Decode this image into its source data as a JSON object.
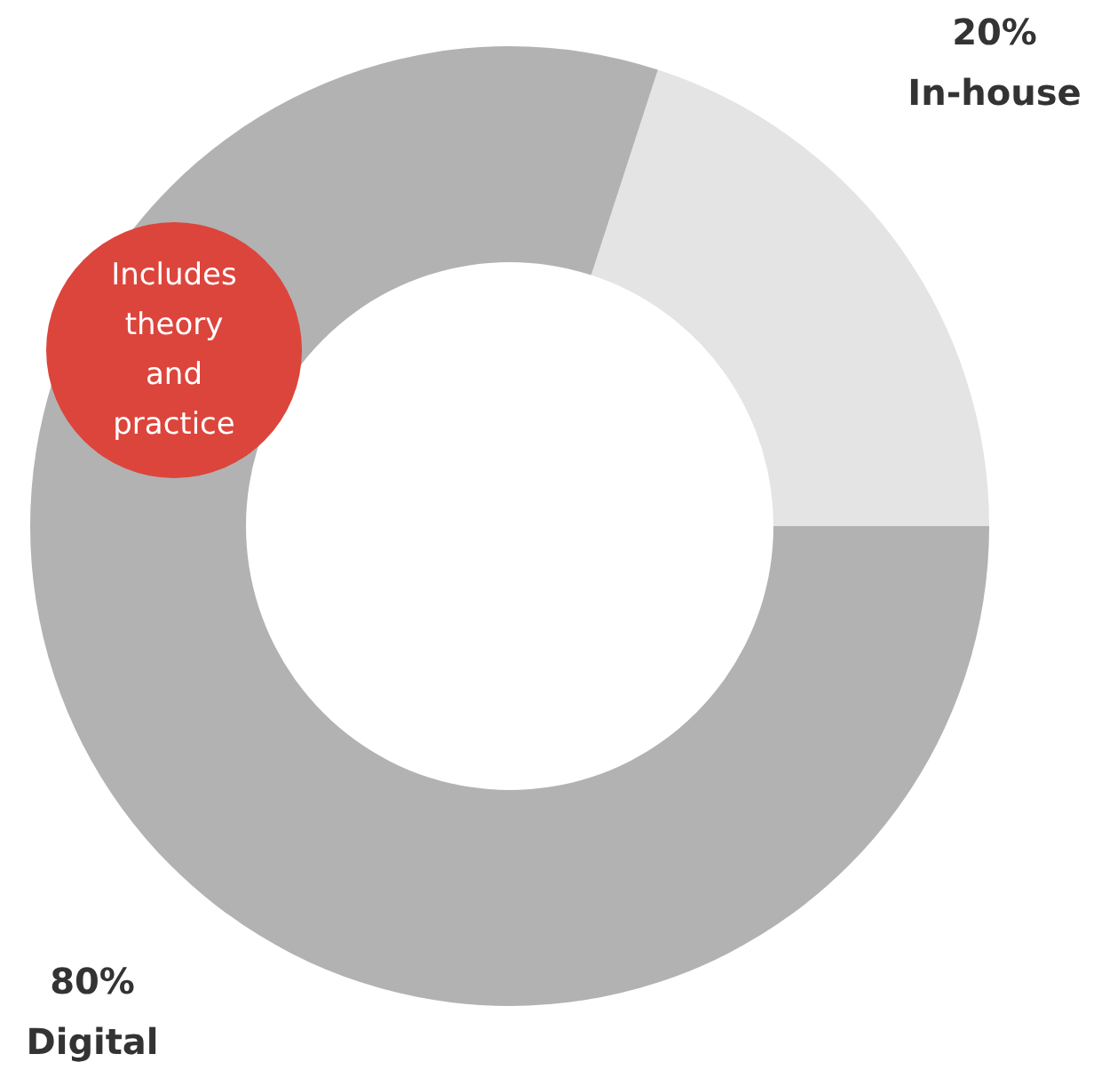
{
  "chart_data": {
    "type": "donut",
    "categories": [
      "In-house",
      "Digital"
    ],
    "values": [
      20,
      80
    ],
    "value_labels": [
      "20%",
      "80%"
    ],
    "colors": [
      "#e4e4e4",
      "#b2b2b2"
    ],
    "annotations": [
      "Includes theory and practice"
    ]
  }
}
